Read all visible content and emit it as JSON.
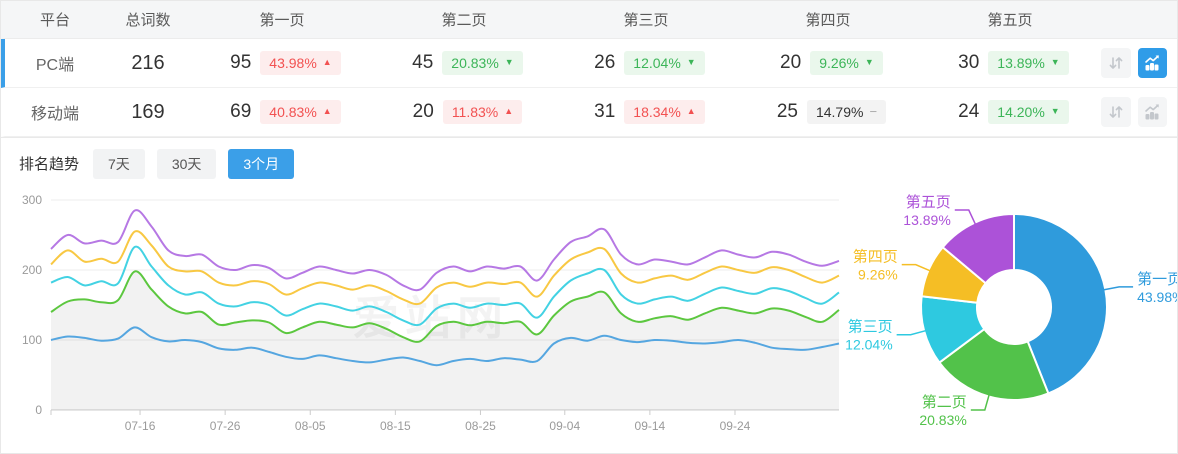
{
  "colors": {
    "accent": "#3b9fe8",
    "grid": "#ececec",
    "axis": "#cccccc"
  },
  "icons": {
    "up": "▲",
    "down": "▼",
    "flat": "−",
    "sort": "sort-arrows-icon",
    "trend": "trend-chart-icon"
  },
  "watermark": "爱站网",
  "table": {
    "headers": [
      "平台",
      "总词数",
      "第一页",
      "第二页",
      "第三页",
      "第四页",
      "第五页"
    ],
    "rows": [
      {
        "platform": "PC端",
        "total": "216",
        "selected": true,
        "chart_active": true,
        "pages": [
          {
            "count": "95",
            "pct": "43.98%",
            "dir": "up",
            "tone": "red"
          },
          {
            "count": "45",
            "pct": "20.83%",
            "dir": "down",
            "tone": "green"
          },
          {
            "count": "26",
            "pct": "12.04%",
            "dir": "down",
            "tone": "green"
          },
          {
            "count": "20",
            "pct": "9.26%",
            "dir": "down",
            "tone": "green"
          },
          {
            "count": "30",
            "pct": "13.89%",
            "dir": "down",
            "tone": "green"
          }
        ]
      },
      {
        "platform": "移动端",
        "total": "169",
        "selected": false,
        "chart_active": false,
        "pages": [
          {
            "count": "69",
            "pct": "40.83%",
            "dir": "up",
            "tone": "red"
          },
          {
            "count": "20",
            "pct": "11.83%",
            "dir": "up",
            "tone": "red"
          },
          {
            "count": "31",
            "pct": "18.34%",
            "dir": "up",
            "tone": "red"
          },
          {
            "count": "25",
            "pct": "14.79%",
            "dir": "flat",
            "tone": "gray"
          },
          {
            "count": "24",
            "pct": "14.20%",
            "dir": "down",
            "tone": "green"
          }
        ]
      }
    ]
  },
  "trend": {
    "title": "排名趋势",
    "tabs": [
      {
        "label": "7天",
        "active": false
      },
      {
        "label": "30天",
        "active": false
      },
      {
        "label": "3个月",
        "active": true
      }
    ]
  },
  "chart_data": [
    {
      "type": "line",
      "title": "排名趋势（3个月）",
      "x_ticks": [
        "07-16",
        "07-26",
        "08-05",
        "08-15",
        "08-25",
        "09-04",
        "09-14",
        "09-24"
      ],
      "y_ticks": [
        0,
        100,
        200,
        300
      ],
      "ylim": [
        0,
        300
      ],
      "grid": true,
      "legend": "none",
      "series": [
        {
          "name": "第五页",
          "color": "#b678e4",
          "area": false,
          "values": [
            230,
            250,
            238,
            242,
            240,
            285,
            262,
            228,
            220,
            222,
            205,
            200,
            207,
            203,
            188,
            196,
            205,
            200,
            195,
            200,
            193,
            178,
            172,
            196,
            205,
            198,
            205,
            202,
            205,
            185,
            215,
            240,
            248,
            258,
            222,
            208,
            215,
            212,
            208,
            218,
            228,
            222,
            218,
            226,
            222,
            212,
            206,
            213
          ]
        },
        {
          "name": "第四页",
          "color": "#f8c843",
          "area": false,
          "values": [
            208,
            228,
            212,
            216,
            212,
            255,
            235,
            205,
            198,
            198,
            182,
            178,
            184,
            180,
            165,
            174,
            182,
            178,
            172,
            178,
            170,
            158,
            152,
            175,
            182,
            176,
            182,
            180,
            182,
            162,
            192,
            215,
            225,
            230,
            195,
            182,
            188,
            192,
            186,
            196,
            205,
            200,
            196,
            204,
            200,
            190,
            182,
            192
          ]
        },
        {
          "name": "第三页",
          "color": "#43d2e3",
          "area": false,
          "values": [
            182,
            190,
            178,
            184,
            181,
            233,
            205,
            178,
            165,
            168,
            152,
            148,
            154,
            150,
            135,
            144,
            152,
            148,
            142,
            148,
            140,
            128,
            122,
            145,
            152,
            146,
            152,
            150,
            152,
            132,
            162,
            185,
            195,
            200,
            165,
            152,
            158,
            162,
            156,
            166,
            175,
            170,
            166,
            174,
            170,
            160,
            152,
            168
          ]
        },
        {
          "name": "第二页",
          "color": "#5cc73f",
          "area": true,
          "values": [
            140,
            155,
            158,
            154,
            157,
            198,
            172,
            148,
            138,
            140,
            122,
            125,
            128,
            125,
            110,
            118,
            126,
            122,
            118,
            124,
            116,
            104,
            98,
            120,
            126,
            121,
            126,
            124,
            126,
            108,
            135,
            155,
            162,
            168,
            138,
            126,
            131,
            134,
            129,
            138,
            146,
            142,
            138,
            145,
            142,
            133,
            126,
            143
          ]
        },
        {
          "name": "第一页",
          "color": "#55a6e0",
          "area": false,
          "values": [
            100,
            105,
            103,
            99,
            102,
            118,
            104,
            98,
            100,
            97,
            88,
            86,
            89,
            83,
            76,
            73,
            78,
            74,
            70,
            68,
            72,
            75,
            70,
            64,
            70,
            73,
            70,
            74,
            72,
            70,
            95,
            103,
            99,
            106,
            100,
            97,
            100,
            99,
            96,
            95,
            97,
            100,
            96,
            89,
            87,
            86,
            90,
            95
          ]
        }
      ]
    },
    {
      "type": "pie",
      "donut": true,
      "slices": [
        {
          "name": "第一页",
          "pct": 43.98,
          "label": "43.98%",
          "color": "#2f9bdc"
        },
        {
          "name": "第二页",
          "pct": 20.83,
          "label": "20.83%",
          "color": "#52c24a"
        },
        {
          "name": "第三页",
          "pct": 12.04,
          "label": "12.04%",
          "color": "#2ec9e0"
        },
        {
          "name": "第四页",
          "pct": 9.26,
          "label": "9.26%",
          "color": "#f5be25"
        },
        {
          "name": "第五页",
          "pct": 13.89,
          "label": "13.89%",
          "color": "#ac52d8"
        }
      ]
    }
  ]
}
